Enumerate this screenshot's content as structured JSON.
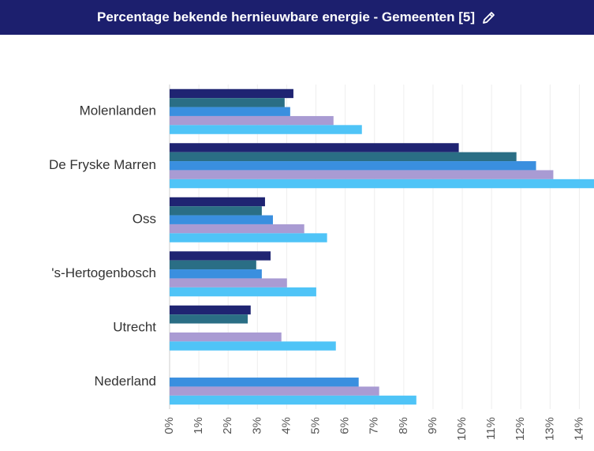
{
  "header": {
    "title": "Percentage bekende hernieuwbare energie - Gemeenten [5]"
  },
  "chart_data": {
    "type": "bar",
    "orientation": "horizontal",
    "categories": [
      "Molenlanden",
      "De Fryske Marren",
      "Oss",
      "'s-Hertogenbosch",
      "Utrecht",
      "Nederland"
    ],
    "series": [
      {
        "color": "#1f2472",
        "values": [
          4.23,
          9.88,
          3.26,
          3.45,
          2.77,
          null
        ]
      },
      {
        "color": "#2a6e85",
        "values": [
          3.93,
          11.85,
          3.15,
          2.96,
          2.67,
          null
        ]
      },
      {
        "color": "#3a8fdf",
        "values": [
          4.12,
          12.52,
          3.53,
          3.15,
          null,
          6.46
        ]
      },
      {
        "color": "#a99bd3",
        "values": [
          5.6,
          13.11,
          4.6,
          4.01,
          3.82,
          7.16
        ]
      },
      {
        "color": "#4fc4f7",
        "values": [
          6.57,
          14.5,
          5.38,
          5.01,
          5.68,
          8.43
        ]
      }
    ],
    "xlim": [
      0,
      14.5
    ],
    "xticks": [
      {
        "value": 0,
        "label": "0%"
      },
      {
        "value": 1,
        "label": "1%"
      },
      {
        "value": 2,
        "label": "2%"
      },
      {
        "value": 3,
        "label": "3%"
      },
      {
        "value": 4,
        "label": "4%"
      },
      {
        "value": 5,
        "label": "5%"
      },
      {
        "value": 6,
        "label": "6%"
      },
      {
        "value": 7,
        "label": "7%"
      },
      {
        "value": 8,
        "label": "8%"
      },
      {
        "value": 9,
        "label": "9%"
      },
      {
        "value": 10,
        "label": "10%"
      },
      {
        "value": 11,
        "label": "11%"
      },
      {
        "value": 12,
        "label": "12%"
      },
      {
        "value": 13,
        "label": "13%"
      },
      {
        "value": 14,
        "label": "14%"
      }
    ],
    "grid": true
  }
}
